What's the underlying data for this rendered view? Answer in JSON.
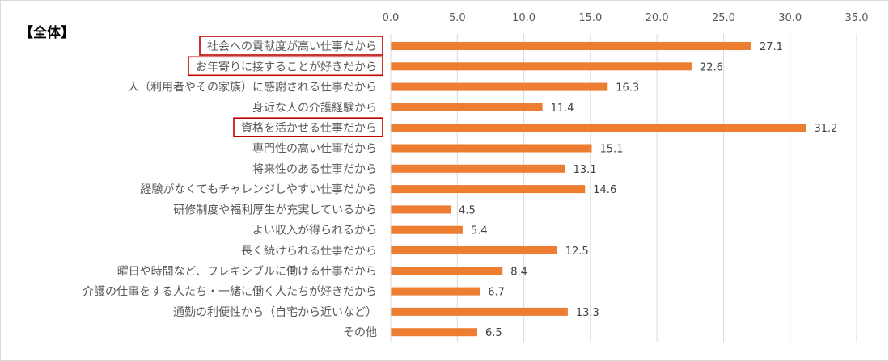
{
  "chart_data": {
    "type": "bar",
    "orientation": "horizontal",
    "title": "【全体】",
    "xlabel": "",
    "ylabel": "",
    "xlim": [
      0,
      35
    ],
    "ticks": [
      "0.0",
      "5.0",
      "10.0",
      "15.0",
      "20.0",
      "25.0",
      "30.0",
      "35.0"
    ],
    "tick_values": [
      0,
      5,
      10,
      15,
      20,
      25,
      30,
      35
    ],
    "grid": true,
    "legend": "none",
    "bar_color": "#ED7D31",
    "highlight_color": "#C00000",
    "categories": [
      "社会への貢献度が高い仕事だから",
      "お年寄りに接することが好きだから",
      "人（利用者やその家族）に感謝される仕事だから",
      "身近な人の介護経験から",
      "資格を活かせる仕事だから",
      "専門性の高い仕事だから",
      "将来性のある仕事だから",
      "経験がなくてもチャレンジしやすい仕事だから",
      "研修制度や福利厚生が充実しているから",
      "よい収入が得られるから",
      "長く続けられる仕事だから",
      "曜日や時間など、フレキシブルに働ける仕事だから",
      "介護の仕事をする人たち・一緒に働く人たちが好きだから",
      "通勤の利便性から（自宅から近いなど）",
      "その他"
    ],
    "values": [
      27.1,
      22.6,
      16.3,
      11.4,
      31.2,
      15.1,
      13.1,
      14.6,
      4.5,
      5.4,
      12.5,
      8.4,
      6.7,
      13.3,
      6.5
    ],
    "value_labels": [
      "27.1",
      "22.6",
      "16.3",
      "11.4",
      "31.2",
      "15.1",
      "13.1",
      "14.6",
      "4.5",
      "5.4",
      "12.5",
      "8.4",
      "6.7",
      "13.3",
      "6.5"
    ],
    "highlighted_categories": [
      0,
      1,
      4
    ]
  }
}
